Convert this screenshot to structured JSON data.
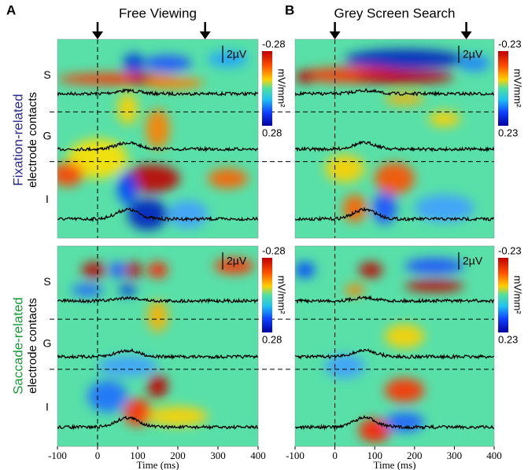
{
  "row_labels": {
    "top": [
      "Fixation-related",
      "electrode contacts"
    ],
    "bottom": [
      "Saccade-related",
      "electrode contacts"
    ]
  },
  "chart_data": [
    {
      "type": "heatmap",
      "panel_label": "A",
      "title": "Free Viewing",
      "rows": [
        "S",
        "G",
        "I"
      ],
      "scale_bar": "2µV",
      "colorbar_label": "mV/mm²",
      "colorbar_ticks": [
        -0.28,
        0.28
      ],
      "xlim": [
        -100,
        400
      ]
    },
    {
      "type": "heatmap",
      "panel_label": "B",
      "title": "Grey Screen Search",
      "rows": [
        "S",
        "G",
        "I"
      ],
      "scale_bar": "2µV",
      "colorbar_label": "mV/mm²",
      "colorbar_ticks": [
        -0.23,
        0.23
      ],
      "xlim": [
        -100,
        400
      ]
    },
    {
      "type": "heatmap",
      "rows": [
        "S",
        "G",
        "I"
      ],
      "scale_bar": "2µV",
      "colorbar_label": "mV/mm²",
      "colorbar_ticks": [
        -0.28,
        0.28
      ],
      "xlim": [
        -100,
        400
      ],
      "xticks": [
        -100,
        0,
        100,
        200,
        300,
        400
      ],
      "xlabel": "Time (ms)"
    },
    {
      "type": "heatmap",
      "rows": [
        "S",
        "G",
        "I"
      ],
      "scale_bar": "2µV",
      "colorbar_label": "mV/mm²",
      "colorbar_ticks": [
        -0.23,
        0.23
      ],
      "xlim": [
        -100,
        400
      ],
      "xticks": [
        -100,
        0,
        100,
        200,
        300,
        400
      ],
      "xlabel": "Time (ms)"
    }
  ]
}
